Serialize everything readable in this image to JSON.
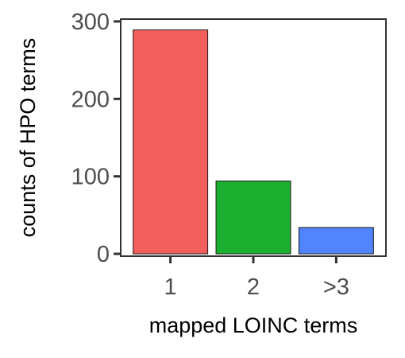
{
  "chart_data": {
    "type": "bar",
    "categories": [
      "1",
      "2",
      ">3"
    ],
    "values": [
      289,
      94,
      34
    ],
    "colors": [
      "#F25F5C",
      "#1AAF2E",
      "#5085FF"
    ],
    "xlabel": "mapped LOINC terms",
    "ylabel": "counts of HPO terms",
    "yticks": [
      0,
      100,
      200,
      300
    ],
    "ylim": [
      -3,
      303
    ],
    "grid": false,
    "legend": "none"
  }
}
